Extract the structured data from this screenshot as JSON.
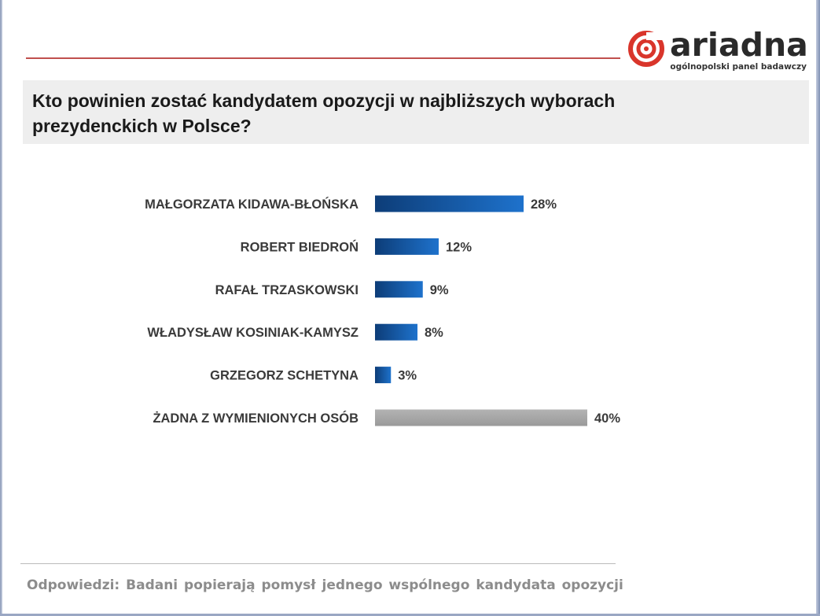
{
  "logo": {
    "word": "ariadna",
    "tagline": "ogólnopolski panel badawczy"
  },
  "colors": {
    "accent_rule": "#c0504d",
    "logo_red": "#d9352b",
    "bar_dark": "#0d3d78",
    "bar_light": "#1e72cc",
    "bar_none": "#a6a6a6"
  },
  "question": {
    "line1": "Kto powinien zostać kandydatem opozycji w najbliższych wyborach",
    "line2": "prezydenckich w Polsce?"
  },
  "chart_data": {
    "type": "bar",
    "orientation": "horizontal",
    "categories": [
      "MAŁGORZATA KIDAWA-BŁOŃSKA",
      "ROBERT BIEDROŃ",
      "RAFAŁ TRZASKOWSKI",
      "WŁADYSŁAW KOSINIAK-KAMYSZ",
      "GRZEGORZ SCHETYNA",
      "ŻADNA Z WYMIENIONYCH OSÓB"
    ],
    "values": [
      28,
      12,
      9,
      8,
      3,
      40
    ],
    "value_labels": [
      "28%",
      "12%",
      "9%",
      "8%",
      "3%",
      "40%"
    ],
    "bar_styles": [
      "blue",
      "blue",
      "blue",
      "blue",
      "blue",
      "gray"
    ],
    "unit": "%",
    "xlim": [
      0,
      40
    ],
    "grid": false,
    "legend": "none"
  },
  "footnote": "Odpowiedzi: Badani popierają pomysł jednego wspólnego kandydata opozycji"
}
